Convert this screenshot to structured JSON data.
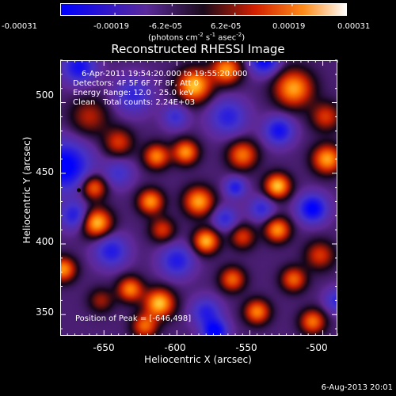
{
  "colorbar": {
    "ticks": [
      "-0.00031",
      "-0.00019",
      "-6.2e-05",
      "6.2e-05",
      "0.00019",
      "0.00031"
    ],
    "unit_prefix": "(photons cm",
    "unit_exp1": "-2",
    "unit_mid": " s",
    "unit_exp2": "-1",
    "unit_mid2": " asec",
    "unit_exp3": "-2",
    "unit_suffix": ")",
    "colors": [
      "#0000ff",
      "#5a2a9a",
      "#1a0a1a",
      "#d42000",
      "#ff8c1a",
      "#ffffff"
    ]
  },
  "chart_data": {
    "type": "heatmap",
    "title": "Reconstructed RHESSI Image",
    "xlabel": "Heliocentric X (arcsec)",
    "ylabel": "Heliocentric Y (arcsec)",
    "xlim": [
      -680,
      -490
    ],
    "ylim": [
      335,
      530
    ],
    "xticks": [
      -650,
      -600,
      -550,
      -500
    ],
    "yticks": [
      350,
      400,
      450,
      500
    ],
    "xtick_labels": [
      "-650",
      "-600",
      "-550",
      "-500"
    ],
    "ytick_labels": [
      "350",
      "400",
      "450",
      "500"
    ],
    "peak": {
      "x": -646,
      "y": 498
    },
    "sources": [
      {
        "x": -588,
        "y": 512,
        "v": 1.0,
        "s": 8
      },
      {
        "x": -566,
        "y": 523,
        "v": 0.85,
        "s": 7
      },
      {
        "x": -520,
        "y": 510,
        "v": 0.9,
        "s": 9
      },
      {
        "x": -498,
        "y": 490,
        "v": 0.55,
        "s": 7
      },
      {
        "x": -640,
        "y": 472,
        "v": 0.55,
        "s": 7
      },
      {
        "x": -614,
        "y": 462,
        "v": 0.8,
        "s": 6
      },
      {
        "x": -594,
        "y": 465,
        "v": 0.85,
        "s": 6
      },
      {
        "x": -555,
        "y": 463,
        "v": 0.75,
        "s": 7
      },
      {
        "x": -497,
        "y": 460,
        "v": 0.9,
        "s": 7
      },
      {
        "x": -657,
        "y": 440,
        "v": 0.75,
        "s": 6
      },
      {
        "x": -618,
        "y": 430,
        "v": 0.85,
        "s": 6
      },
      {
        "x": -585,
        "y": 430,
        "v": 0.9,
        "s": 7
      },
      {
        "x": -531,
        "y": 441,
        "v": 1.0,
        "s": 6
      },
      {
        "x": -655,
        "y": 415,
        "v": 1.0,
        "s": 7
      },
      {
        "x": -610,
        "y": 410,
        "v": 0.55,
        "s": 6
      },
      {
        "x": -580,
        "y": 402,
        "v": 0.95,
        "s": 6
      },
      {
        "x": -555,
        "y": 405,
        "v": 0.55,
        "s": 6
      },
      {
        "x": -531,
        "y": 410,
        "v": 0.85,
        "s": 6
      },
      {
        "x": -502,
        "y": 392,
        "v": 0.55,
        "s": 7
      },
      {
        "x": -520,
        "y": 375,
        "v": 0.7,
        "s": 6
      },
      {
        "x": -678,
        "y": 382,
        "v": 0.85,
        "s": 6
      },
      {
        "x": -632,
        "y": 368,
        "v": 0.8,
        "s": 6
      },
      {
        "x": -612,
        "y": 358,
        "v": 1.0,
        "s": 7
      },
      {
        "x": -562,
        "y": 375,
        "v": 0.7,
        "s": 6
      },
      {
        "x": -545,
        "y": 352,
        "v": 0.8,
        "s": 6
      },
      {
        "x": -507,
        "y": 345,
        "v": 0.75,
        "s": 6
      },
      {
        "x": -622,
        "y": 342,
        "v": 0.7,
        "s": 6
      },
      {
        "x": -652,
        "y": 360,
        "v": 0.4,
        "s": 6
      },
      {
        "x": -660,
        "y": 490,
        "v": 0.45,
        "s": 9
      },
      {
        "x": -677,
        "y": 455,
        "v": -0.9,
        "s": 12
      },
      {
        "x": -667,
        "y": 525,
        "v": -0.7,
        "s": 8
      },
      {
        "x": -540,
        "y": 530,
        "v": -0.8,
        "s": 7
      },
      {
        "x": -565,
        "y": 490,
        "v": -0.55,
        "s": 9
      },
      {
        "x": -530,
        "y": 480,
        "v": -0.7,
        "s": 7
      },
      {
        "x": -630,
        "y": 505,
        "v": -0.5,
        "s": 9
      },
      {
        "x": -670,
        "y": 420,
        "v": -0.6,
        "s": 7
      },
      {
        "x": -640,
        "y": 450,
        "v": -0.4,
        "s": 7
      },
      {
        "x": -507,
        "y": 425,
        "v": -0.85,
        "s": 7
      },
      {
        "x": -542,
        "y": 425,
        "v": -0.5,
        "s": 6
      },
      {
        "x": -567,
        "y": 418,
        "v": -0.5,
        "s": 6
      },
      {
        "x": -600,
        "y": 388,
        "v": -0.6,
        "s": 8
      },
      {
        "x": -645,
        "y": 395,
        "v": -0.6,
        "s": 8
      },
      {
        "x": -580,
        "y": 352,
        "v": -0.55,
        "s": 7
      },
      {
        "x": -574,
        "y": 338,
        "v": -0.85,
        "s": 6
      },
      {
        "x": -490,
        "y": 360,
        "v": -0.5,
        "s": 6
      },
      {
        "x": -560,
        "y": 440,
        "v": -0.6,
        "s": 5
      },
      {
        "x": -601,
        "y": 490,
        "v": -0.45,
        "s": 6
      }
    ]
  },
  "info": {
    "line1": "6-Apr-2011 19:54:20.000 to 19:55:20.000",
    "line2": "Detectors: 4F 5F 6F 7F 8F, Att 0",
    "line3": "Energy Range: 12.0 - 25.0 keV",
    "line4": "Clean   Total counts: 2.24E+03",
    "peak_text": "Position of Peak = [-646,498]"
  },
  "timestamp": "6-Aug-2013 20:01"
}
